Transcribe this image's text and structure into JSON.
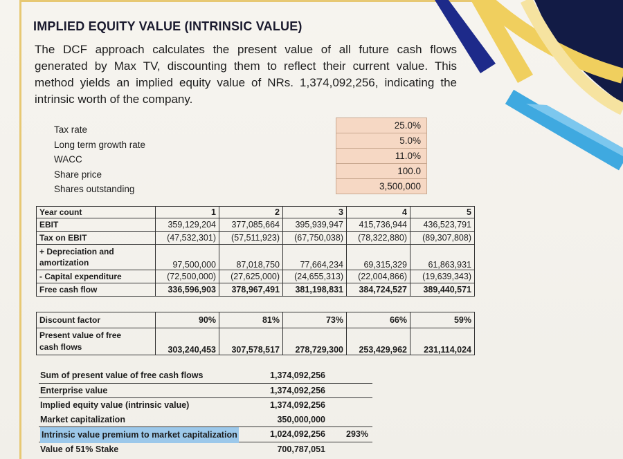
{
  "title": "IMPLIED EQUITY VALUE (INTRINSIC VALUE)",
  "intro": "The DCF approach calculates the present value of all future cash flows generated by Max TV, discounting them to reflect their current value. This method yields an implied equity value of NRs. 1,374,092,256, indicating the intrinsic worth of the company.",
  "assumptions": [
    {
      "label": "Tax rate",
      "value": "25.0%"
    },
    {
      "label": "Long term growth rate",
      "value": "5.0%"
    },
    {
      "label": "WACC",
      "value": "11.0%"
    },
    {
      "label": "Share price",
      "value": "100.0"
    },
    {
      "label": "Shares outstanding",
      "value": "3,500,000"
    }
  ],
  "fcf_table": {
    "year_label": "Year count",
    "years": [
      "1",
      "2",
      "3",
      "4",
      "5"
    ],
    "rows": [
      {
        "label": "EBIT",
        "values": [
          "359,129,204",
          "377,085,664",
          "395,939,947",
          "415,736,944",
          "436,523,791"
        ]
      },
      {
        "label": "Tax on EBIT",
        "values": [
          "(47,532,301)",
          "(57,511,923)",
          "(67,750,038)",
          "(78,322,880)",
          "(89,307,808)"
        ]
      },
      {
        "label_line1": "+ Depreciation and",
        "label_line2": "amortization",
        "values": [
          "97,500,000",
          "87,018,750",
          "77,664,234",
          "69,315,329",
          "61,863,931"
        ]
      },
      {
        "label": "- Capital expenditure",
        "values": [
          "(72,500,000)",
          "(27,625,000)",
          "(24,655,313)",
          "(22,004,866)",
          "(19,639,343)"
        ]
      },
      {
        "label": "Free cash flow",
        "values": [
          "336,596,903",
          "378,967,491",
          "381,198,831",
          "384,724,527",
          "389,440,571"
        ]
      }
    ]
  },
  "pv_table": {
    "discount_label": "Discount factor",
    "discount_values": [
      "90%",
      "81%",
      "73%",
      "66%",
      "59%"
    ],
    "pv_label_line1": "Present value of free",
    "pv_label_line2": "cash flows",
    "pv_values": [
      "303,240,453",
      "307,578,517",
      "278,729,300",
      "253,429,962",
      "231,114,024"
    ]
  },
  "summary": [
    {
      "label": "Sum of present value of free cash flows",
      "value": "1,374,092,256"
    },
    {
      "label": "Enterprise value",
      "value": "1,374,092,256"
    },
    {
      "label": "Implied equity value (intrinsic value)",
      "value": "1,374,092,256"
    },
    {
      "label": "Market capitalization",
      "value": "350,000,000"
    },
    {
      "label": "Intrinsic value premium to market capitalization",
      "value": "1,024,092,256",
      "percent": "293%"
    },
    {
      "label": "Value of 51% Stake",
      "value": "700,787,051"
    }
  ],
  "colors": {
    "navy": "#121b45",
    "yellow": "#f0cf5e",
    "sky_blue": "#3fa9e0",
    "assumption_fill": "#f6d8c4",
    "highlight": "#9cc8ea"
  }
}
